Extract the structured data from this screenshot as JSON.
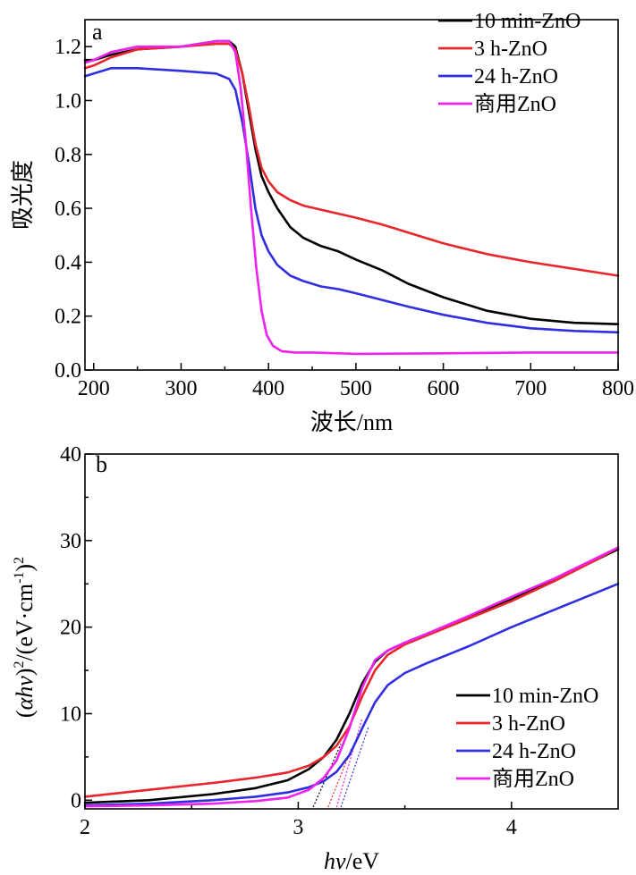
{
  "chart_data": [
    {
      "panel": "a",
      "type": "line",
      "xlabel": "波长/nm",
      "ylabel": "吸光度",
      "xlim": [
        190,
        800
      ],
      "ylim": [
        0.0,
        1.3
      ],
      "xticks": [
        200,
        300,
        400,
        500,
        600,
        700,
        800
      ],
      "yticks": [
        0.0,
        0.2,
        0.4,
        0.6,
        0.8,
        1.0,
        1.2
      ],
      "ytick_labels": [
        "0.0",
        "0.2",
        "0.4",
        "0.6",
        "0.8",
        "1.0",
        "1.2"
      ],
      "legend_position": "top-right",
      "series": [
        {
          "name": "10 min-ZnO",
          "color": "#000000",
          "x": [
            190,
            200,
            220,
            250,
            300,
            340,
            355,
            362,
            370,
            378,
            385,
            392,
            400,
            410,
            425,
            440,
            460,
            480,
            500,
            530,
            560,
            600,
            650,
            700,
            750,
            800
          ],
          "y": [
            1.15,
            1.15,
            1.17,
            1.19,
            1.2,
            1.22,
            1.22,
            1.2,
            1.1,
            0.95,
            0.82,
            0.72,
            0.66,
            0.6,
            0.53,
            0.49,
            0.46,
            0.44,
            0.41,
            0.37,
            0.32,
            0.27,
            0.22,
            0.19,
            0.175,
            0.17
          ]
        },
        {
          "name": "3 h-ZnO",
          "color": "#e8262b",
          "x": [
            190,
            200,
            220,
            250,
            300,
            340,
            355,
            362,
            370,
            378,
            385,
            392,
            400,
            410,
            425,
            440,
            460,
            480,
            500,
            530,
            560,
            600,
            650,
            700,
            750,
            800
          ],
          "y": [
            1.12,
            1.13,
            1.16,
            1.19,
            1.2,
            1.21,
            1.21,
            1.19,
            1.1,
            0.97,
            0.84,
            0.75,
            0.7,
            0.66,
            0.63,
            0.61,
            0.595,
            0.58,
            0.565,
            0.54,
            0.51,
            0.47,
            0.43,
            0.4,
            0.375,
            0.35
          ]
        },
        {
          "name": "24 h-ZnO",
          "color": "#2f2fe0",
          "x": [
            190,
            200,
            220,
            250,
            300,
            340,
            355,
            362,
            370,
            378,
            385,
            392,
            400,
            410,
            425,
            440,
            460,
            480,
            500,
            530,
            560,
            600,
            650,
            700,
            750,
            800
          ],
          "y": [
            1.09,
            1.1,
            1.12,
            1.12,
            1.11,
            1.1,
            1.08,
            1.04,
            0.92,
            0.76,
            0.6,
            0.5,
            0.44,
            0.39,
            0.35,
            0.33,
            0.31,
            0.3,
            0.285,
            0.26,
            0.235,
            0.205,
            0.175,
            0.155,
            0.145,
            0.14
          ]
        },
        {
          "name": "商用ZnO",
          "color": "#ee22ee",
          "x": [
            190,
            200,
            220,
            250,
            300,
            340,
            355,
            362,
            368,
            374,
            380,
            386,
            392,
            398,
            405,
            415,
            430,
            450,
            500,
            600,
            700,
            800
          ],
          "y": [
            1.14,
            1.15,
            1.18,
            1.2,
            1.2,
            1.22,
            1.22,
            1.18,
            1.05,
            0.85,
            0.6,
            0.38,
            0.22,
            0.13,
            0.09,
            0.07,
            0.065,
            0.065,
            0.06,
            0.062,
            0.065,
            0.065
          ]
        }
      ]
    },
    {
      "panel": "b",
      "type": "line",
      "xlabel_italic": "hν",
      "xlabel_rest": "/eV",
      "ylabel_parts": [
        "(",
        "αhν",
        ")",
        "2",
        "/(eV·cm",
        "-1",
        ")",
        "2"
      ],
      "xlim": [
        2.0,
        4.5
      ],
      "ylim": [
        -1,
        40
      ],
      "xticks": [
        2,
        3,
        4
      ],
      "yticks": [
        0,
        10,
        20,
        30,
        40
      ],
      "legend_position": "bottom-right",
      "series": [
        {
          "name": "10 min-ZnO",
          "color": "#000000",
          "x": [
            2.0,
            2.3,
            2.6,
            2.8,
            2.95,
            3.05,
            3.12,
            3.18,
            3.24,
            3.3,
            3.36,
            3.42,
            3.5,
            3.6,
            3.8,
            4.0,
            4.2,
            4.4,
            4.5
          ],
          "y": [
            -0.3,
            0.0,
            0.7,
            1.4,
            2.3,
            3.6,
            5.0,
            7.0,
            10.0,
            13.5,
            16.0,
            17.3,
            18.2,
            19.2,
            21.2,
            23.2,
            25.5,
            27.8,
            29.0
          ]
        },
        {
          "name": "3 h-ZnO",
          "color": "#e8262b",
          "x": [
            2.0,
            2.3,
            2.6,
            2.8,
            2.95,
            3.05,
            3.12,
            3.18,
            3.24,
            3.3,
            3.36,
            3.42,
            3.5,
            3.6,
            3.8,
            4.0,
            4.2,
            4.4,
            4.5
          ],
          "y": [
            0.4,
            1.2,
            2.0,
            2.6,
            3.2,
            4.0,
            5.0,
            6.3,
            8.5,
            12.0,
            15.0,
            16.8,
            18.0,
            19.0,
            21.0,
            23.0,
            25.3,
            27.8,
            29.2
          ]
        },
        {
          "name": "24 h-ZnO",
          "color": "#2f2fe0",
          "x": [
            2.0,
            2.3,
            2.6,
            2.8,
            2.95,
            3.05,
            3.12,
            3.18,
            3.24,
            3.3,
            3.36,
            3.42,
            3.5,
            3.6,
            3.8,
            4.0,
            4.2,
            4.4,
            4.5
          ],
          "y": [
            -0.6,
            -0.4,
            0.0,
            0.4,
            0.9,
            1.5,
            2.2,
            3.3,
            5.2,
            8.3,
            11.3,
            13.3,
            14.7,
            15.8,
            17.8,
            20.0,
            22.0,
            24.0,
            25.0
          ]
        },
        {
          "name": "商用ZnO",
          "color": "#ee22ee",
          "x": [
            2.0,
            2.3,
            2.6,
            2.8,
            2.95,
            3.05,
            3.12,
            3.18,
            3.24,
            3.3,
            3.36,
            3.42,
            3.5,
            3.6,
            3.8,
            4.0,
            4.2,
            4.4,
            4.5
          ],
          "y": [
            -0.7,
            -0.6,
            -0.4,
            -0.1,
            0.3,
            1.2,
            2.6,
            4.6,
            8.3,
            13.0,
            16.2,
            17.3,
            18.2,
            19.2,
            21.3,
            23.5,
            25.6,
            28.0,
            29.2
          ]
        }
      ],
      "extrapolation_lines": [
        {
          "color": "#000000",
          "x": [
            3.07,
            3.2
          ],
          "y": [
            -0.8,
            6.5
          ]
        },
        {
          "color": "#e8262b",
          "x": [
            3.14,
            3.25
          ],
          "y": [
            -0.8,
            6.0
          ]
        },
        {
          "color": "#2f2fe0",
          "x": [
            3.2,
            3.33
          ],
          "y": [
            -0.8,
            8.5
          ]
        },
        {
          "color": "#ee22ee",
          "x": [
            3.18,
            3.3
          ],
          "y": [
            -0.8,
            9.5
          ]
        }
      ]
    }
  ]
}
